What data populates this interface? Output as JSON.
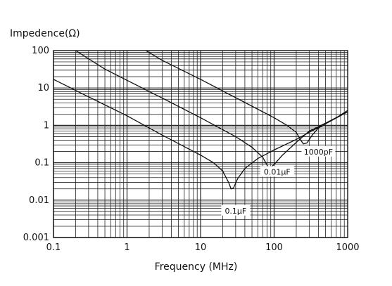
{
  "chart_data": {
    "type": "line",
    "xlabel": "Frequency (MHz)",
    "ylabel": "Impedence(Ω)",
    "xscale": "log",
    "yscale": "log",
    "xlim": [
      0.1,
      1000
    ],
    "ylim": [
      0.001,
      100
    ],
    "grid": true,
    "x_ticks": [
      {
        "value": 0.1,
        "label": "0.1"
      },
      {
        "value": 1,
        "label": "1"
      },
      {
        "value": 10,
        "label": "10"
      },
      {
        "value": 100,
        "label": "100"
      },
      {
        "value": 1000,
        "label": "1000"
      }
    ],
    "y_ticks": [
      {
        "value": 100,
        "label": "100"
      },
      {
        "value": 10,
        "label": "10"
      },
      {
        "value": 1,
        "label": "1"
      },
      {
        "value": 0.1,
        "label": "0.1"
      },
      {
        "value": 0.01,
        "label": "0.01"
      },
      {
        "value": 0.001,
        "label": "0.001"
      }
    ],
    "series": [
      {
        "name": "0.1μF",
        "x": [
          0.1,
          0.3,
          1,
          3,
          10,
          15,
          20,
          24,
          26,
          28,
          32,
          40,
          60,
          100,
          200,
          300,
          500,
          1000
        ],
        "y": [
          17,
          5.8,
          1.8,
          0.55,
          0.16,
          0.1,
          0.06,
          0.03,
          0.02,
          0.021,
          0.038,
          0.07,
          0.13,
          0.22,
          0.42,
          0.65,
          1.1,
          2.3
        ]
      },
      {
        "name": "0.01μF",
        "x": [
          0.2,
          0.5,
          1,
          3,
          10,
          30,
          50,
          70,
          82,
          90,
          100,
          130,
          200,
          300,
          500,
          1000
        ],
        "y": [
          100,
          32,
          16,
          5.4,
          1.6,
          0.5,
          0.26,
          0.14,
          0.08,
          0.075,
          0.09,
          0.16,
          0.35,
          0.7,
          1.15,
          2.3
        ]
      },
      {
        "name": "1000pF",
        "x": [
          1.8,
          3,
          10,
          30,
          100,
          150,
          200,
          230,
          250,
          280,
          330,
          400,
          500,
          700,
          1000
        ],
        "y": [
          100,
          55,
          17,
          5.5,
          1.6,
          1.0,
          0.65,
          0.4,
          0.32,
          0.34,
          0.55,
          0.85,
          1.1,
          1.6,
          2.5
        ]
      }
    ],
    "annotations": [
      {
        "text": "0.1μF",
        "x": 30,
        "y": 0.005
      },
      {
        "text": "0.01μF",
        "x": 110,
        "y": 0.055
      },
      {
        "text": "1000pF",
        "x": 400,
        "y": 0.19
      }
    ]
  }
}
